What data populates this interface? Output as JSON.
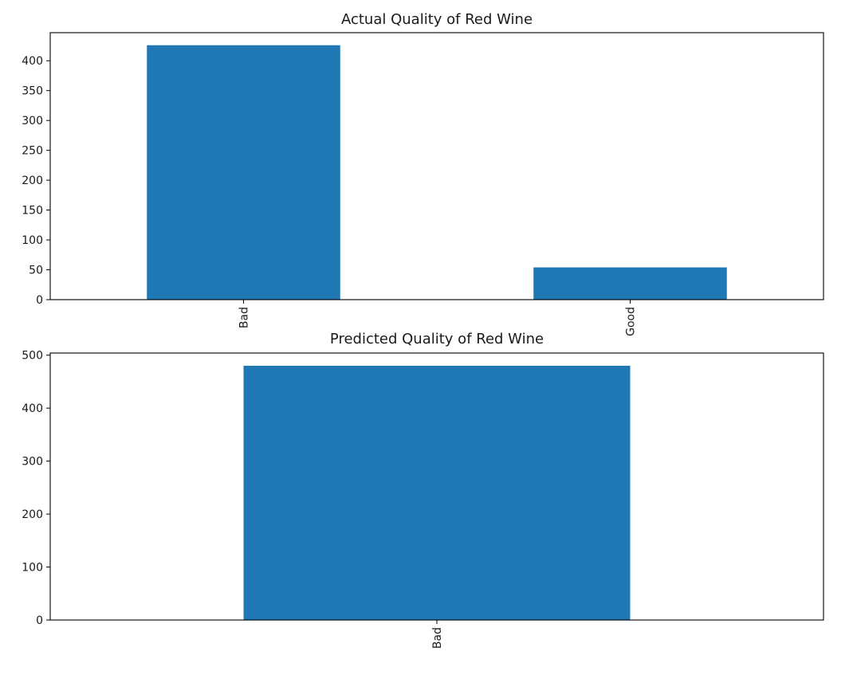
{
  "chart_data": [
    {
      "type": "bar",
      "title": "Actual Quality of Red Wine",
      "xlabel": "",
      "ylabel": "",
      "categories": [
        "Bad",
        "Good"
      ],
      "values": [
        426,
        54
      ],
      "ylim": [
        0,
        447
      ],
      "yticks": [
        0,
        50,
        100,
        150,
        200,
        250,
        300,
        350,
        400
      ],
      "bar_color": "#1f77b4",
      "x_tick_rotation": 90,
      "grid": false,
      "legend": "none"
    },
    {
      "type": "bar",
      "title": "Predicted Quality of Red Wine",
      "xlabel": "",
      "ylabel": "",
      "categories": [
        "Bad"
      ],
      "values": [
        480
      ],
      "ylim": [
        0,
        504
      ],
      "yticks": [
        0,
        100,
        200,
        300,
        400,
        500
      ],
      "bar_color": "#1f77b4",
      "x_tick_rotation": 90,
      "grid": false,
      "legend": "none"
    }
  ]
}
